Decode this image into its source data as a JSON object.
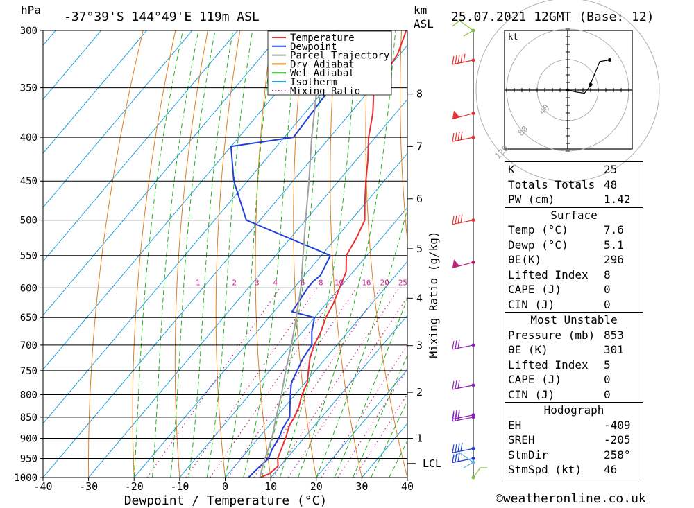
{
  "header": {
    "hpa_label": "hPa",
    "location": "-37°39'S  144°49'E  119m  ASL",
    "km_label": "km",
    "asl_label": "ASL",
    "datetime": "25.07.2021  12GMT  (Base: 12)"
  },
  "legend": [
    {
      "label": "Temperature",
      "color": "#e83030",
      "style": "solid"
    },
    {
      "label": "Dewpoint",
      "color": "#2040d8",
      "style": "solid"
    },
    {
      "label": "Parcel Trajectory",
      "color": "#a0a0a0",
      "style": "solid"
    },
    {
      "label": "Dry Adiabat",
      "color": "#e08020",
      "style": "solid"
    },
    {
      "label": "Wet Adiabat",
      "color": "#20b020",
      "style": "solid"
    },
    {
      "label": "Isotherm",
      "color": "#20a0e0",
      "style": "solid"
    },
    {
      "label": "Mixing Ratio",
      "color": "#d02090",
      "style": "dotted"
    }
  ],
  "chart_data": {
    "type": "line",
    "subtype": "skew-T log-P",
    "xlabel": "Dewpoint / Temperature (°C)",
    "ylabel_left": "hPa",
    "ylabel_mixing": "Mixing Ratio (g/kg)",
    "x_ticks": [
      -40,
      -30,
      -20,
      -10,
      0,
      10,
      20,
      30,
      40
    ],
    "xlim": [
      -40,
      40
    ],
    "pressure_levels": [
      300,
      350,
      400,
      450,
      500,
      550,
      600,
      650,
      700,
      750,
      800,
      850,
      900,
      950,
      1000
    ],
    "km_ticks": [
      {
        "km": 1,
        "p": 900
      },
      {
        "km": 2,
        "p": 795
      },
      {
        "km": 3,
        "p": 701
      },
      {
        "km": 4,
        "p": 617
      },
      {
        "km": 5,
        "p": 540
      },
      {
        "km": 6,
        "p": 472
      },
      {
        "km": 7,
        "p": 410
      },
      {
        "km": 8,
        "p": 356
      }
    ],
    "lcl": {
      "label": "LCL",
      "p": 963
    },
    "mixing_ratio_labels": [
      "1",
      "2",
      "3",
      "4",
      "6",
      "8",
      "10",
      "16",
      "20",
      "25"
    ],
    "mixing_ratio_label_positions": [
      -6,
      2,
      7,
      11,
      17,
      21,
      25,
      31,
      35,
      39
    ],
    "series": [
      {
        "name": "Temperature",
        "color": "#e83030",
        "points": [
          [
            1000,
            7.6
          ],
          [
            990,
            9
          ],
          [
            970,
            9.5
          ],
          [
            950,
            8
          ],
          [
            925,
            7
          ],
          [
            900,
            6
          ],
          [
            870,
            4.5
          ],
          [
            850,
            4
          ],
          [
            825,
            3
          ],
          [
            800,
            1.5
          ],
          [
            775,
            0.5
          ],
          [
            750,
            -1.5
          ],
          [
            725,
            -3.5
          ],
          [
            700,
            -5
          ],
          [
            675,
            -6
          ],
          [
            650,
            -7.5
          ],
          [
            625,
            -8.5
          ],
          [
            600,
            -10
          ],
          [
            575,
            -11.5
          ],
          [
            550,
            -14.5
          ],
          [
            525,
            -15.5
          ],
          [
            500,
            -17
          ],
          [
            475,
            -20.5
          ],
          [
            450,
            -24
          ],
          [
            425,
            -27.5
          ],
          [
            400,
            -31.5
          ],
          [
            375,
            -35
          ],
          [
            350,
            -39.5
          ],
          [
            340,
            -39.5
          ],
          [
            320,
            -40.5
          ],
          [
            300,
            -43
          ]
        ]
      },
      {
        "name": "Dewpoint",
        "color": "#2040d8",
        "points": [
          [
            1000,
            5.1
          ],
          [
            975,
            5.5
          ],
          [
            950,
            6
          ],
          [
            925,
            5
          ],
          [
            900,
            4.5
          ],
          [
            875,
            3.5
          ],
          [
            850,
            3
          ],
          [
            825,
            1
          ],
          [
            800,
            -1
          ],
          [
            775,
            -3
          ],
          [
            750,
            -4
          ],
          [
            725,
            -5
          ],
          [
            700,
            -5.5
          ],
          [
            675,
            -8
          ],
          [
            650,
            -10
          ],
          [
            640,
            -16
          ],
          [
            600,
            -17
          ],
          [
            590,
            -17
          ],
          [
            580,
            -16.5
          ],
          [
            550,
            -18
          ],
          [
            500,
            -43
          ],
          [
            450,
            -53
          ],
          [
            410,
            -60
          ],
          [
            400,
            -48
          ],
          [
            350,
            -49
          ],
          [
            345,
            -60
          ],
          [
            300,
            -58
          ]
        ]
      },
      {
        "name": "Parcel Trajectory",
        "color": "#a0a0a0",
        "points": [
          [
            1000,
            7.6
          ],
          [
            963,
            5.8
          ],
          [
            900,
            3
          ],
          [
            850,
            0
          ],
          [
            800,
            -3
          ],
          [
            750,
            -6.5
          ],
          [
            700,
            -10
          ],
          [
            650,
            -14
          ],
          [
            600,
            -18.5
          ],
          [
            550,
            -24
          ],
          [
            500,
            -30
          ],
          [
            450,
            -36.5
          ],
          [
            400,
            -44
          ],
          [
            350,
            -52
          ],
          [
            320,
            -57
          ],
          [
            300,
            -60
          ]
        ]
      }
    ]
  },
  "wind_profile": [
    {
      "p": 1000,
      "color": "#80c040",
      "barb": "calm"
    },
    {
      "p": 960,
      "color": "#60b0e0",
      "barb": "light"
    },
    {
      "p": 950,
      "color": "#2040d8",
      "barb": "25kt"
    },
    {
      "p": 925,
      "color": "#2040d8",
      "barb": "40kt"
    },
    {
      "p": 850,
      "color": "#9020c0",
      "barb": "30kt"
    },
    {
      "p": 845,
      "color": "#9020c0",
      "barb": "30kt"
    },
    {
      "p": 780,
      "color": "#9020c0",
      "barb": "30kt"
    },
    {
      "p": 700,
      "color": "#9020c0",
      "barb": "30kt"
    },
    {
      "p": 560,
      "color": "#c0207a",
      "barb": "pennant"
    },
    {
      "p": 500,
      "color": "#e83030",
      "barb": "35kt"
    },
    {
      "p": 400,
      "color": "#e83030",
      "barb": "40kt"
    },
    {
      "p": 375,
      "color": "#e83030",
      "barb": "pennant"
    },
    {
      "p": 325,
      "color": "#e83030",
      "barb": "45kt"
    },
    {
      "p": 300,
      "color": "#80c040",
      "barb": "light"
    }
  ],
  "hodograph": {
    "unit_label": "kt",
    "ring_labels": [
      "40",
      "80",
      "120"
    ],
    "trace_uv": [
      [
        0,
        0
      ],
      [
        12,
        -4
      ],
      [
        22,
        -6
      ],
      [
        28,
        5
      ],
      [
        42,
        55
      ],
      [
        55,
        58
      ]
    ]
  },
  "stats": {
    "indices": [
      {
        "label": "K",
        "value": "25"
      },
      {
        "label": "Totals Totals",
        "value": "48"
      },
      {
        "label": "PW (cm)",
        "value": "1.42"
      }
    ],
    "surface": {
      "title": "Surface",
      "rows": [
        {
          "label": "Temp (°C)",
          "value": "7.6"
        },
        {
          "label": "Dewp (°C)",
          "value": "5.1"
        },
        {
          "label": "θE(K)",
          "value": "296"
        },
        {
          "label": "Lifted Index",
          "value": "8"
        },
        {
          "label": "CAPE (J)",
          "value": "0"
        },
        {
          "label": "CIN (J)",
          "value": "0"
        }
      ]
    },
    "most_unstable": {
      "title": "Most Unstable",
      "rows": [
        {
          "label": "Pressure (mb)",
          "value": "853"
        },
        {
          "label": "θE (K)",
          "value": "301"
        },
        {
          "label": "Lifted Index",
          "value": "5"
        },
        {
          "label": "CAPE (J)",
          "value": "0"
        },
        {
          "label": "CIN (J)",
          "value": "0"
        }
      ]
    },
    "hodograph": {
      "title": "Hodograph",
      "rows": [
        {
          "label": "EH",
          "value": "-409"
        },
        {
          "label": "SREH",
          "value": "-205"
        },
        {
          "label": "StmDir",
          "value": "258°"
        },
        {
          "label": "StmSpd (kt)",
          "value": "46"
        }
      ]
    }
  },
  "credit": "©weatheronline.co.uk"
}
